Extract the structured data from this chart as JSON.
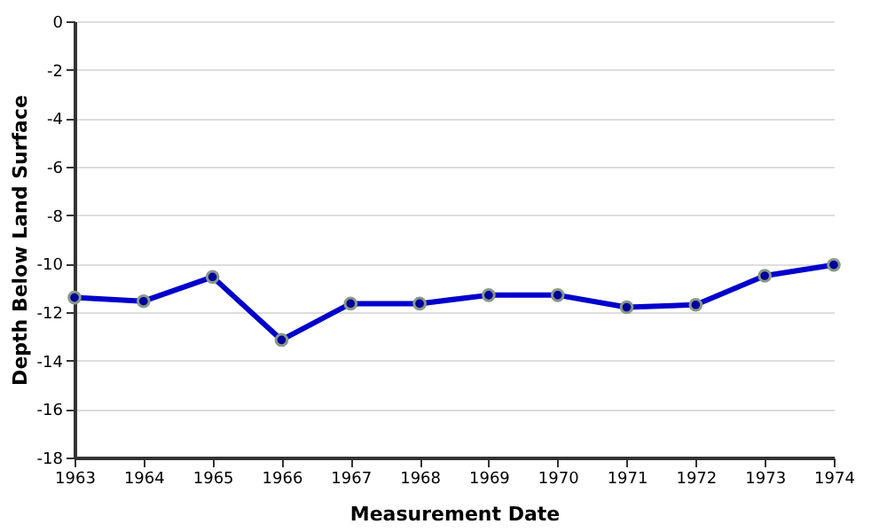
{
  "chart_data": {
    "type": "line",
    "xlabel": "Measurement Date",
    "ylabel": "Depth Below Land Surface",
    "x": [
      1963,
      1964,
      1965,
      1966,
      1967,
      1968,
      1969,
      1970,
      1971,
      1972,
      1973,
      1974
    ],
    "series": [
      {
        "color": "#0000cc",
        "values": [
          -11.4,
          -11.55,
          -10.55,
          -13.15,
          -11.65,
          -11.65,
          -11.3,
          -11.3,
          -11.8,
          -11.7,
          -10.5,
          -10.05
        ]
      }
    ],
    "xlim": [
      1963,
      1974
    ],
    "xticks": [
      1963,
      1964,
      1965,
      1966,
      1967,
      1968,
      1969,
      1970,
      1971,
      1972,
      1973,
      1974
    ],
    "ylim": [
      -18,
      0
    ],
    "yticks": [
      -18,
      -16,
      -14,
      -12,
      -10,
      -8,
      -6,
      -4,
      -2,
      0
    ],
    "grid": "y",
    "marker": "circle",
    "line_style": "solid"
  }
}
